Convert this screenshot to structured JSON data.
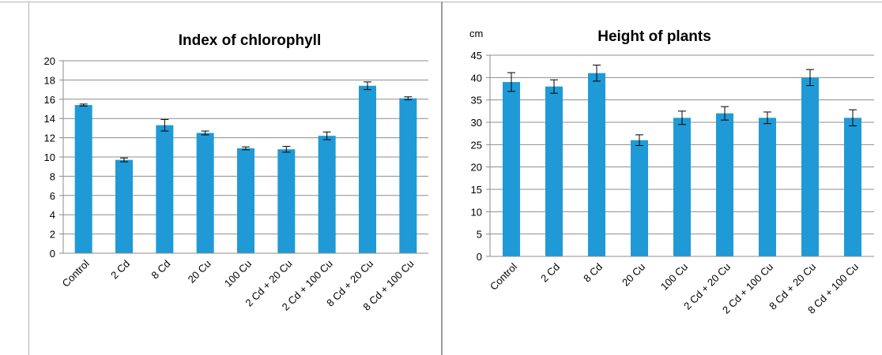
{
  "chart_data": [
    {
      "type": "bar",
      "title": "Index of chlorophyll",
      "ylabel": "",
      "xlabel": "",
      "categories": [
        "Control",
        "2 Cd",
        "8 Cd",
        "20 Cu",
        "100 Cu",
        "2 Cd + 20 Cu",
        "2 Cd + 100 Cu",
        "8 Cd + 20 Cu",
        "8 Cd + 100 Cu"
      ],
      "values": [
        15.4,
        9.7,
        13.3,
        12.5,
        10.9,
        10.8,
        12.2,
        17.4,
        16.1
      ],
      "errors": [
        0.1,
        0.2,
        0.6,
        0.2,
        0.15,
        0.3,
        0.4,
        0.4,
        0.15
      ],
      "ylim": [
        0,
        20
      ],
      "yticks": [
        0,
        2,
        4,
        6,
        8,
        10,
        12,
        14,
        16,
        18,
        20
      ],
      "grid": true,
      "bar_color": "#1f9ad6"
    },
    {
      "type": "bar",
      "title": "Height of plants",
      "ylabel": "cm",
      "xlabel": "",
      "categories": [
        "Control",
        "2 Cd",
        "8 Cd",
        "20 Cu",
        "100 Cu",
        "2 Cd + 20 Cu",
        "2 Cd + 100 Cu",
        "8 Cd + 20 Cu",
        "8 Cd + 100 Cu"
      ],
      "values": [
        39,
        38,
        41,
        26,
        31,
        32,
        31,
        40,
        31
      ],
      "errors": [
        2.1,
        1.5,
        1.8,
        1.2,
        1.5,
        1.5,
        1.3,
        1.8,
        1.8
      ],
      "ylim": [
        0,
        45
      ],
      "yticks": [
        0,
        5,
        10,
        15,
        20,
        25,
        30,
        35,
        40,
        45
      ],
      "grid": true,
      "bar_color": "#1f9ad6"
    }
  ]
}
